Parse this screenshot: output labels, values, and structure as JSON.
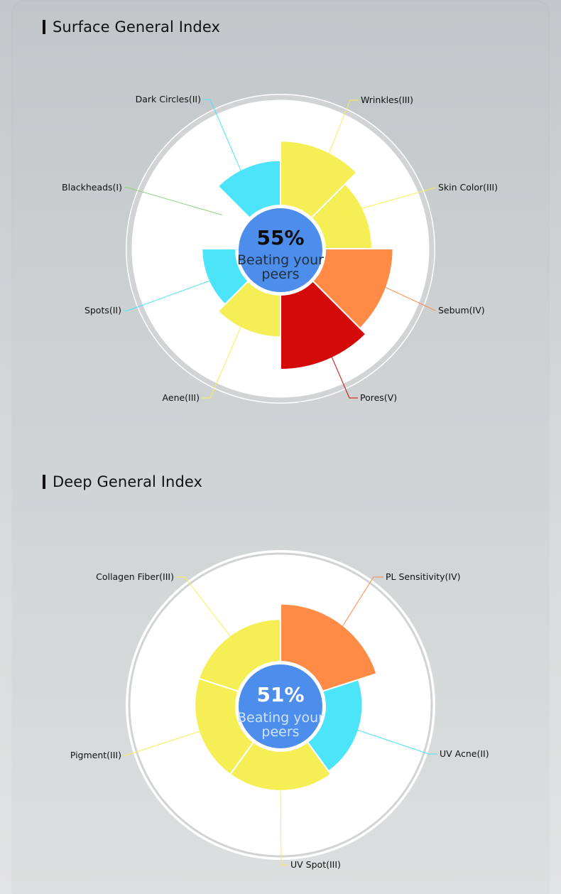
{
  "colors": {
    "blue": "#4d8eec",
    "cyan": "#4be4f8",
    "yellow": "#f5ef55",
    "orange": "#ff8b47",
    "red": "#d40a0a",
    "green": "#8fd27a"
  },
  "surface": {
    "title": "Surface General Index",
    "center_percent": "55%",
    "center_line1": "Beating your",
    "center_line2": "peers"
  },
  "deep": {
    "title": "Deep General Index",
    "center_percent": "51%",
    "center_line1": "Beating your",
    "center_line2": "peers"
  },
  "chart_data": [
    {
      "type": "pie",
      "variant": "polar-area",
      "title": "Surface General Index",
      "center_value": 55,
      "center_unit": "%",
      "scale_max": 5,
      "categories": [
        "Wrinkles(III)",
        "Skin Color(III)",
        "Sebum(IV)",
        "Pores(V)",
        "Aene(III)",
        "Spots(II)",
        "Blackheads(I)",
        "Dark Circles(II)"
      ],
      "values": [
        3,
        3,
        4,
        5,
        3,
        2,
        1,
        2
      ],
      "slice_colors": [
        "yellow",
        "yellow",
        "orange",
        "red",
        "yellow",
        "cyan",
        "green",
        "cyan"
      ],
      "start_angle_deg": 0,
      "wedges": [
        {
          "start": 0,
          "end": 45,
          "level": 4.2
        },
        {
          "start": 45,
          "end": 90,
          "level": 3.2
        },
        {
          "start": 90,
          "end": 135,
          "level": 4.5
        },
        {
          "start": 135,
          "end": 180,
          "level": 5.0
        },
        {
          "start": 180,
          "end": 225,
          "level": 3.0
        },
        {
          "start": 225,
          "end": 270,
          "level": 2.4
        },
        {
          "start": 270,
          "end": 315,
          "level": 0
        },
        {
          "start": 315,
          "end": 360,
          "level": 3.0
        }
      ],
      "label_angles_deg": [
        30,
        60,
        107,
        153,
        208,
        245,
        300,
        332
      ]
    },
    {
      "type": "pie",
      "variant": "polar-area",
      "title": "Deep General Index",
      "center_value": 51,
      "center_unit": "%",
      "scale_max": 5,
      "categories": [
        "PL Sensitivity(IV)",
        "UV Acne(II)",
        "UV Spot(III)",
        "Pigment(III)",
        "Collagen Fiber(III)"
      ],
      "values": [
        4,
        2,
        3,
        3,
        3
      ],
      "slice_colors": [
        "orange",
        "cyan",
        "yellow",
        "yellow",
        "yellow"
      ],
      "start_angle_deg": 0,
      "wedges": [
        {
          "start": 0,
          "end": 72,
          "level": 4.8
        },
        {
          "start": 72,
          "end": 144,
          "level": 3.3
        },
        {
          "start": 144,
          "end": 216,
          "level": 3.6
        },
        {
          "start": 216,
          "end": 288,
          "level": 3.6
        },
        {
          "start": 288,
          "end": 360,
          "level": 3.6
        }
      ],
      "label_angles_deg": [
        40,
        108,
        180,
        252,
        324
      ]
    }
  ]
}
